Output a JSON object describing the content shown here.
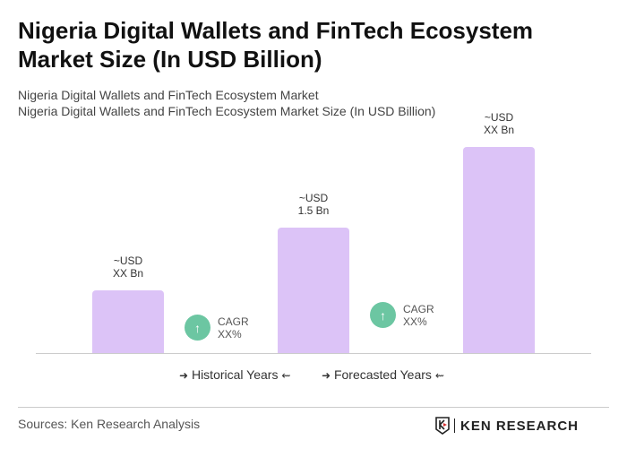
{
  "title": "Nigeria Digital Wallets and FinTech Ecosystem Market Size (In USD Billion)",
  "subtitle1": "Nigeria Digital Wallets and FinTech Ecosystem Market",
  "subtitle2": "Nigeria Digital Wallets and FinTech Ecosystem Market Size (In USD Billion)",
  "chart_data": {
    "type": "bar",
    "categories": [
      "",
      "",
      ""
    ],
    "values": [
      null,
      1.5,
      null
    ],
    "data_labels": [
      [
        "~USD",
        "XX Bn"
      ],
      [
        "~USD",
        "1.5 Bn"
      ],
      [
        "~USD",
        "XX Bn"
      ]
    ],
    "bar_color": "#dcc3f7",
    "grid": false,
    "annotations": [
      {
        "label": "CAGR",
        "value": "XX%"
      },
      {
        "label": "CAGR",
        "value": "XX%"
      }
    ],
    "legend": [
      "Historical Years",
      "Forecasted Years"
    ],
    "legend_position": "bottom"
  },
  "colors": {
    "cagr_badge": "#6cc6a2"
  },
  "sources": "Sources: Ken Research Analysis",
  "logo_text": "KEN RESEARCH"
}
